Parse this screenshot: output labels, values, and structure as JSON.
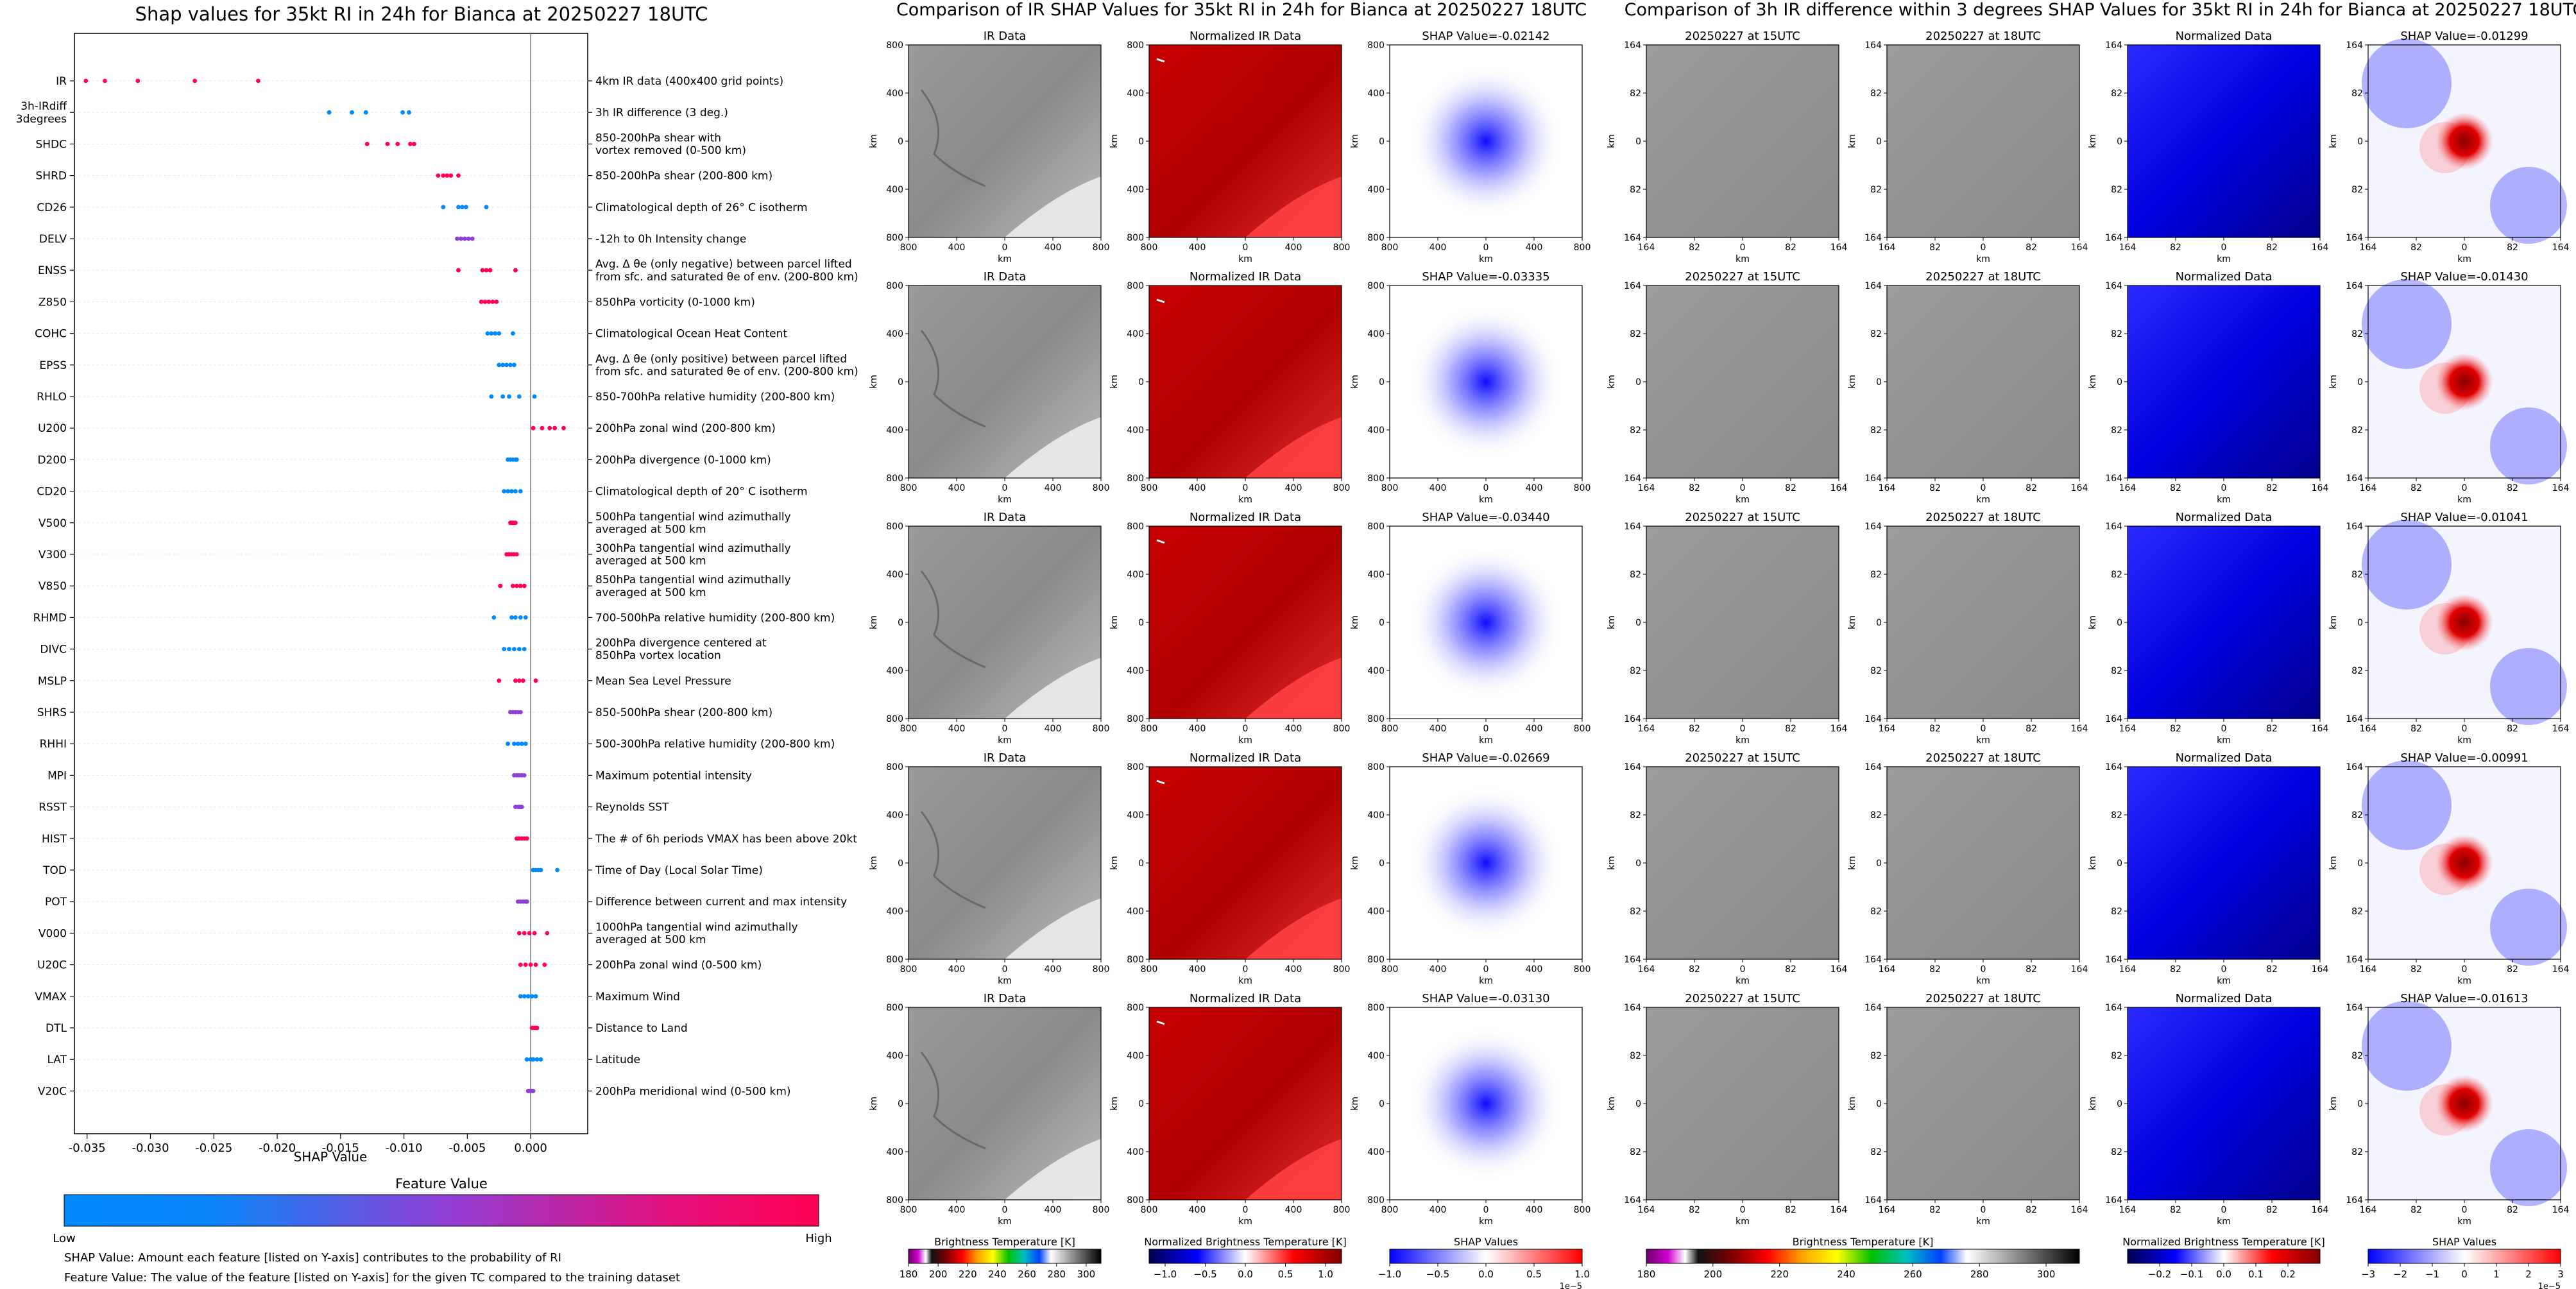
{
  "titles": {
    "shap": "Shap values for 35kt RI in 24h for Bianca at 20250227 18UTC",
    "ir": "Comparison of IR SHAP Values for 35kt RI in 24h for Bianca at 20250227 18UTC",
    "diff": "Comparison of 3h IR difference within 3 degrees SHAP Values for 35kt RI in 24h for Bianca at 20250227 18UTC"
  },
  "notes": {
    "shap_value": "SHAP Value: Amount each feature [listed on Y-axis] contributes to the probability of RI",
    "feature_value": "Feature Value: The value of the feature [listed on Y-axis] for the given TC compared to the training dataset"
  },
  "colors": {
    "low": "#008afb",
    "mid": "#8d3fd6",
    "high": "#ff0052"
  },
  "chart_data": [
    {
      "type": "scatter",
      "title": "Shap values for 35kt RI in 24h for Bianca at 20250227 18UTC",
      "xlabel": "SHAP Value",
      "xlim": [
        -0.036,
        0.0045
      ],
      "xticks": [
        "-0.035",
        "-0.030",
        "-0.025",
        "-0.020",
        "-0.015",
        "-0.010",
        "-0.005",
        "0.000"
      ],
      "xtick_values": [
        -0.035,
        -0.03,
        -0.025,
        -0.02,
        -0.015,
        -0.01,
        -0.005,
        0.0
      ],
      "colorbar": {
        "label": "Feature Value",
        "low": "Low",
        "high": "High"
      },
      "features": [
        {
          "name": "IR",
          "desc": "4km IR data (400x400 grid points)",
          "points": [
            -0.0351,
            -0.0336,
            -0.031,
            -0.0265,
            -0.0215
          ],
          "color": "high"
        },
        {
          "name": "3h-IRdiff\n3degrees",
          "desc": "3h IR difference (3 deg.)",
          "points": [
            -0.0159,
            -0.0141,
            -0.013,
            -0.0101,
            -0.0096
          ],
          "color": "low"
        },
        {
          "name": "SHDC",
          "desc": "850-200hPa shear with\nvortex removed (0-500 km)",
          "points": [
            -0.0129,
            -0.0113,
            -0.0105,
            -0.0095,
            -0.0092
          ],
          "color": "high"
        },
        {
          "name": "SHRD",
          "desc": "850-200hPa shear (200-800 km)",
          "points": [
            -0.0073,
            -0.0069,
            -0.0066,
            -0.0063,
            -0.0057
          ],
          "color": "high"
        },
        {
          "name": "CD26",
          "desc": "Climatological depth of 26° C isotherm",
          "points": [
            -0.0069,
            -0.0057,
            -0.0054,
            -0.0051,
            -0.0035
          ],
          "color": "low"
        },
        {
          "name": "DELV",
          "desc": "-12h to 0h Intensity change",
          "points": [
            -0.0058,
            -0.0055,
            -0.0052,
            -0.0049,
            -0.0046
          ],
          "color": "mid"
        },
        {
          "name": "ENSS",
          "desc": "Avg. Δ θe (only negative) between parcel lifted\nfrom sfc. and saturated θe of env. (200-800 km)",
          "points": [
            -0.0057,
            -0.0038,
            -0.0035,
            -0.0032,
            -0.0012
          ],
          "color": "high"
        },
        {
          "name": "Z850",
          "desc": "850hPa vorticity (0-1000 km)",
          "points": [
            -0.0039,
            -0.0036,
            -0.0033,
            -0.003,
            -0.0027
          ],
          "color": "high"
        },
        {
          "name": "COHC",
          "desc": "Climatological Ocean Heat Content",
          "points": [
            -0.0034,
            -0.0031,
            -0.0028,
            -0.0025,
            -0.0014
          ],
          "color": "low"
        },
        {
          "name": "EPSS",
          "desc": "Avg. Δ θe (only positive) between parcel lifted\nfrom sfc. and saturated θe of env. (200-800 km)",
          "points": [
            -0.0025,
            -0.0022,
            -0.0019,
            -0.0016,
            -0.0013
          ],
          "color": "low"
        },
        {
          "name": "RHLO",
          "desc": "850-700hPa relative humidity (200-800 km)",
          "points": [
            -0.0031,
            -0.0022,
            -0.0017,
            -0.0009,
            0.0003
          ],
          "color": "low"
        },
        {
          "name": "U200",
          "desc": "200hPa zonal wind (200-800 km)",
          "points": [
            0.0002,
            0.0009,
            0.0015,
            0.0019,
            0.0026
          ],
          "color": "high"
        },
        {
          "name": "D200",
          "desc": "200hPa divergence (0-1000 km)",
          "points": [
            -0.0018,
            -0.0016,
            -0.0014,
            -0.0012,
            -0.0011
          ],
          "color": "low"
        },
        {
          "name": "CD20",
          "desc": "Climatological depth of 20° C isotherm",
          "points": [
            -0.0021,
            -0.0018,
            -0.0015,
            -0.0012,
            -0.0008
          ],
          "color": "low"
        },
        {
          "name": "V500",
          "desc": "500hPa tangential wind azimuthally\naveraged at 500 km",
          "points": [
            -0.0016,
            -0.0015,
            -0.0014,
            -0.0013,
            -0.0012
          ],
          "color": "high"
        },
        {
          "name": "V300",
          "desc": "300hPa tangential wind azimuthally\naveraged at 500 km",
          "points": [
            -0.0019,
            -0.0017,
            -0.0015,
            -0.0013,
            -0.0011
          ],
          "color": "high"
        },
        {
          "name": "V850",
          "desc": "850hPa tangential wind azimuthally\naveraged at 500 km",
          "points": [
            -0.0024,
            -0.0014,
            -0.0011,
            -0.0008,
            -0.0005
          ],
          "color": "high"
        },
        {
          "name": "RHMD",
          "desc": "700-500hPa relative humidity (200-800 km)",
          "points": [
            -0.0029,
            -0.0015,
            -0.0012,
            -0.0008,
            -0.0004
          ],
          "color": "low"
        },
        {
          "name": "DIVC",
          "desc": "200hPa divergence centered at\n850hPa vortex location",
          "points": [
            -0.0021,
            -0.0017,
            -0.0013,
            -0.0009,
            -0.0005
          ],
          "color": "low"
        },
        {
          "name": "MSLP",
          "desc": "Mean Sea Level Pressure",
          "points": [
            -0.0025,
            -0.0012,
            -0.0009,
            -0.0006,
            0.0004
          ],
          "color": "high"
        },
        {
          "name": "SHRS",
          "desc": "850-500hPa shear (200-800 km)",
          "points": [
            -0.0016,
            -0.0014,
            -0.0012,
            -0.001,
            -0.0008
          ],
          "color": "mid"
        },
        {
          "name": "RHHI",
          "desc": "500-300hPa relative humidity (200-800 km)",
          "points": [
            -0.0018,
            -0.0013,
            -0.001,
            -0.0007,
            -0.0004
          ],
          "color": "low"
        },
        {
          "name": "MPI",
          "desc": "Maximum potential intensity",
          "points": [
            -0.0013,
            -0.0011,
            -0.0009,
            -0.0007,
            -0.0005
          ],
          "color": "mid"
        },
        {
          "name": "RSST",
          "desc": "Reynolds SST",
          "points": [
            -0.0012,
            -0.001,
            -0.0009,
            -0.0008,
            -0.0007
          ],
          "color": "mid"
        },
        {
          "name": "HIST",
          "desc": "The # of 6h periods VMAX has been above 20kt",
          "points": [
            -0.0011,
            -0.0009,
            -0.0007,
            -0.0005,
            -0.0003
          ],
          "color": "high"
        },
        {
          "name": "TOD",
          "desc": "Time of Day (Local Solar Time)",
          "points": [
            0.0002,
            0.0004,
            0.0006,
            0.0008,
            0.0021
          ],
          "color": "low"
        },
        {
          "name": "POT",
          "desc": "Difference between current and max intensity",
          "points": [
            -0.001,
            -0.0008,
            -0.0006,
            -0.0004,
            -0.0003
          ],
          "color": "mid"
        },
        {
          "name": "V000",
          "desc": "1000hPa tangential wind azimuthally\naveraged at 500 km",
          "points": [
            -0.0009,
            -0.0005,
            -0.0001,
            0.0003,
            0.0013
          ],
          "color": "high"
        },
        {
          "name": "U20C",
          "desc": "200hPa zonal wind (0-500 km)",
          "points": [
            -0.0008,
            -0.0004,
            0.0,
            0.0004,
            0.0011
          ],
          "color": "high"
        },
        {
          "name": "VMAX",
          "desc": "Maximum Wind",
          "points": [
            -0.0008,
            -0.0005,
            -0.0002,
            0.0001,
            0.0004
          ],
          "color": "low"
        },
        {
          "name": "DTL",
          "desc": "Distance to Land",
          "points": [
            0.0001,
            0.0002,
            0.0003,
            0.0004,
            0.0005
          ],
          "color": "high"
        },
        {
          "name": "LAT",
          "desc": "Latitude",
          "points": [
            -0.0003,
            0.0,
            0.0002,
            0.0005,
            0.0008
          ],
          "color": "low"
        },
        {
          "name": "V20C",
          "desc": "200hPa meridional wind (0-500 km)",
          "points": [
            -0.0002,
            -0.0001,
            0.0,
            0.0001,
            0.0002
          ],
          "color": "mid"
        }
      ]
    },
    {
      "type": "heatmap",
      "title": "Comparison of IR SHAP Values for 35kt RI in 24h for Bianca at 20250227 18UTC",
      "column_titles": [
        "IR Data",
        "Normalized IR Data",
        "SHAP Value"
      ],
      "row_shap_values": [
        "-0.02142",
        "-0.03335",
        "-0.03440",
        "-0.02669",
        "-0.03130"
      ],
      "xlabel": "km",
      "ylabel": "km",
      "xticks": [
        "800",
        "400",
        "0",
        "400",
        "800"
      ],
      "yticks": [
        "800",
        "400",
        "0",
        "400",
        "800"
      ],
      "colorbars": [
        {
          "label": "Brightness Temperature [K]",
          "ticks": [
            "180",
            "200",
            "220",
            "240",
            "260",
            "280",
            "300"
          ],
          "range": [
            180,
            310
          ]
        },
        {
          "label": "Normalized Brightness Temperature [K]",
          "ticks": [
            "−1.0",
            "−0.5",
            "0.0",
            "0.5",
            "1.0"
          ],
          "range": [
            -1.2,
            1.2
          ]
        },
        {
          "label": "SHAP Values",
          "ticks": [
            "−1.0",
            "−0.5",
            "0.0",
            "0.5",
            "1.0"
          ],
          "range": [
            -1.0,
            1.0
          ],
          "offset": "1e−5"
        }
      ]
    },
    {
      "type": "heatmap",
      "title": "Comparison of 3h IR difference within 3 degrees SHAP Values for 35kt RI in 24h for Bianca at 20250227 18UTC",
      "column_titles": [
        "20250227 at 15UTC",
        "20250227 at 18UTC",
        "Normalized Data",
        "SHAP Value"
      ],
      "row_shap_values": [
        "-0.01299",
        "-0.01430",
        "-0.01041",
        "-0.00991",
        "-0.01613"
      ],
      "xlabel": "km",
      "ylabel": "km",
      "xticks": [
        "164",
        "82",
        "0",
        "82",
        "164"
      ],
      "yticks": [
        "164",
        "82",
        "0",
        "82",
        "164"
      ],
      "colorbars": [
        {
          "label": "Brightness Temperature [K]",
          "ticks": [
            "180",
            "200",
            "220",
            "240",
            "260",
            "280",
            "300"
          ],
          "range": [
            180,
            310
          ]
        },
        {
          "label": "Normalized Brightness Temperature [K]",
          "ticks": [
            "−0.2",
            "−0.1",
            "0.0",
            "0.1",
            "0.2"
          ],
          "range": [
            -0.3,
            0.3
          ]
        },
        {
          "label": "SHAP Values",
          "ticks": [
            "−3",
            "−2",
            "−1",
            "0",
            "1",
            "2",
            "3"
          ],
          "range": [
            -3,
            3
          ],
          "offset": "1e−5"
        }
      ]
    }
  ]
}
